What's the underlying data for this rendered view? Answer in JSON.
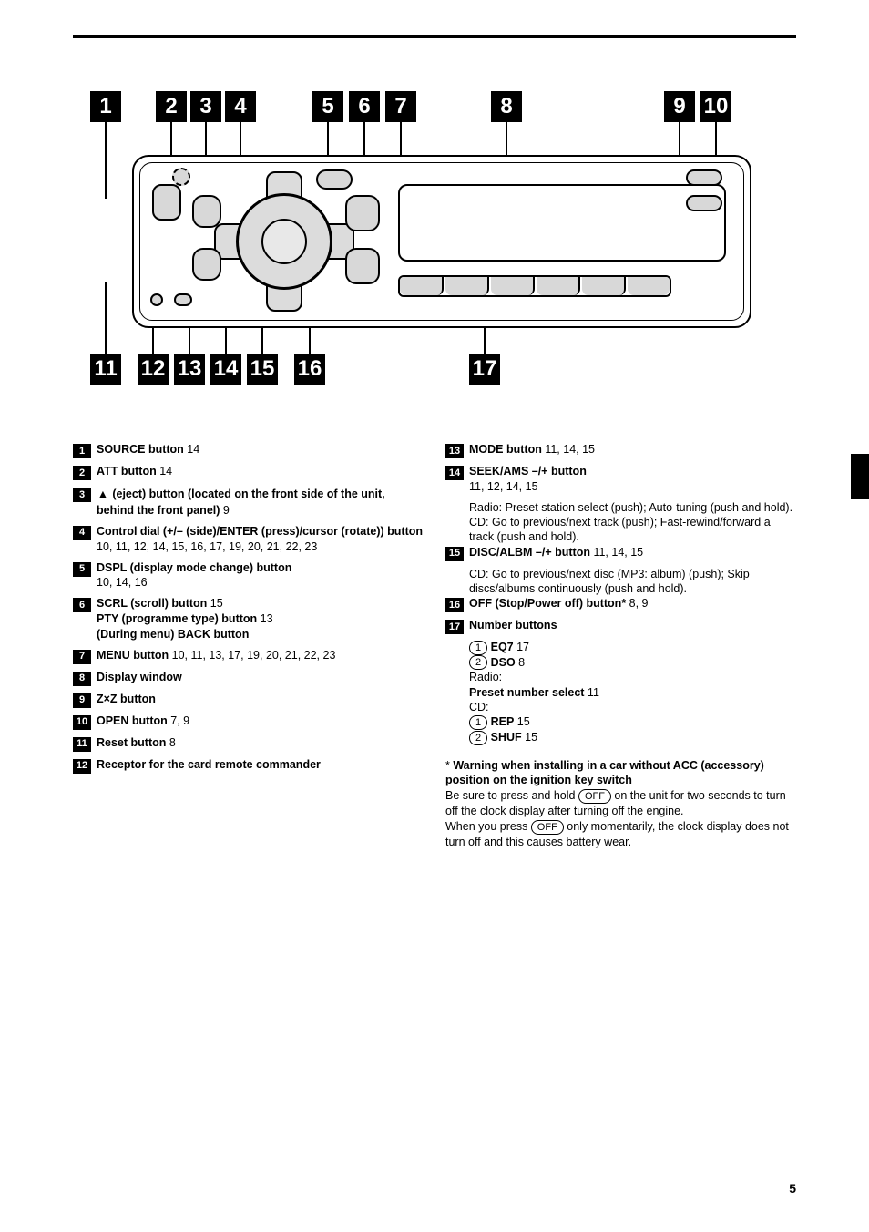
{
  "callouts_top": [
    "1",
    "2",
    "3",
    "4",
    "5",
    "6",
    "7",
    "8",
    "9",
    "10"
  ],
  "callouts_bottom": [
    "11",
    "12",
    "13",
    "14",
    "15",
    "16",
    "17"
  ],
  "left_items": [
    {
      "n": "1",
      "html": "<b>SOURCE button</b> 14",
      "sub": null
    },
    {
      "n": "2",
      "html": "<b>ATT button</b> 14",
      "sub": null
    },
    {
      "n": "3",
      "html": "<span class='eject-icon'>▲</span> <b>(eject) button (located on the front side of the unit, behind the front panel)</b> 9",
      "sub": null
    },
    {
      "n": "4",
      "html": "<b>Control dial (+/– (side)/ENTER (press)/cursor (rotate)) button</b><br>10, 11, 12, 14, 15, 16, 17, 19, 20, 21, 22, 23",
      "sub": null
    },
    {
      "n": "5",
      "html": "<b>DSPL (display mode change) button</b><br>10, 14, 16",
      "sub": null
    },
    {
      "n": "6",
      "html": "<b>SCRL (scroll) button</b> 15<br><b>PTY (programme type) button</b> 13<br><b>(During menu) BACK button</b>",
      "sub": null
    },
    {
      "n": "7",
      "html": "<b>MENU button</b> 10, 11, 13, 17, 19, 20, 21, 22, 23",
      "sub": null
    },
    {
      "n": "8",
      "html": "<b>Display window</b>",
      "sub": null
    },
    {
      "n": "9",
      "html": "<b>Z×Z button</b>",
      "sub": null
    },
    {
      "n": "10",
      "html": "<b>OPEN button</b> 7, 9",
      "sub": null
    },
    {
      "n": "11",
      "html": "<b>Reset button</b> 8",
      "sub": null
    },
    {
      "n": "12",
      "html": "<b>Receptor for the card remote commander</b>",
      "sub": null
    }
  ],
  "right_items": [
    {
      "n": "13",
      "html": "<b>MODE button</b> 11, 14, 15",
      "sub": null
    },
    {
      "n": "14",
      "html": "<b>SEEK/AMS –/+ button</b><br>11, 12, 14, 15",
      "sub": "Radio: Preset station select (push); Auto-tuning (push and hold).<br>CD: Go to previous/next track (push); Fast-rewind/forward a track (push and hold)."
    },
    {
      "n": "15",
      "html": "<b>DISC/ALBM –/+ button</b> 11, 14, 15",
      "sub": "CD: Go to previous/next disc (MP3: album) (push); Skip discs/albums continuously (push and hold)."
    },
    {
      "n": "16",
      "html": "<b>OFF (Stop/Power off) button*</b> 8, 9",
      "sub": null
    },
    {
      "n": "17",
      "html": "<b>Number buttons</b>",
      "sub": null
    }
  ],
  "number_button_lines": [
    {
      "c": "1",
      "t": "<b>EQ7</b> 17"
    },
    {
      "c": "2",
      "t": "<b>DSO</b> 8"
    },
    {
      "t": "Radio:"
    },
    {
      "t": "<b>Preset number select</b> 11"
    },
    {
      "t": "CD:"
    },
    {
      "c": "1",
      "t": "<b>REP</b> 15"
    },
    {
      "c": "2",
      "t": "<b>SHUF</b> 15"
    }
  ],
  "footnote": "* <b>Warning when installing in a car without ACC (accessory) position on the ignition key switch</b><br>Be sure to press and hold <span class='pill-inline'>OFF</span> on the unit for two seconds to turn off the clock display after turning off the engine.<br>When you press <span class='pill-inline'>OFF</span> only momentarily, the clock display does not turn off and this causes battery wear.",
  "page_number": "5"
}
